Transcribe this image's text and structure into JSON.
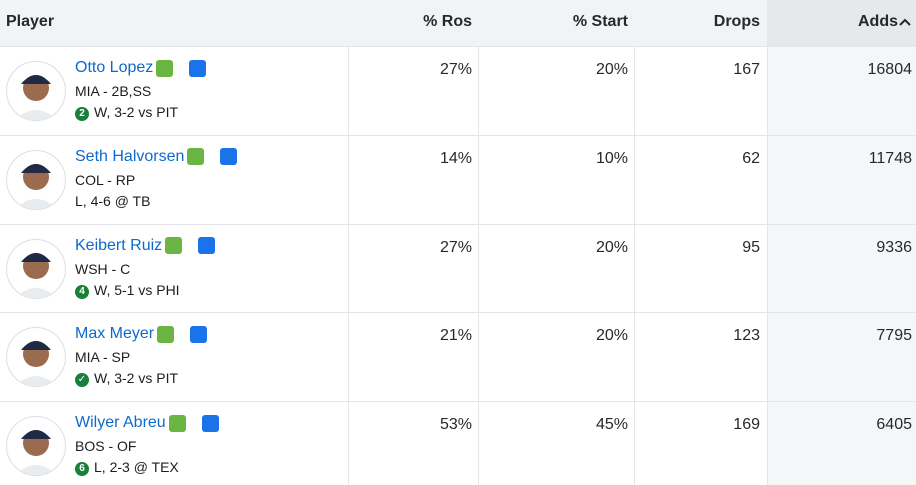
{
  "header": {
    "columns": [
      "Player",
      "% Ros",
      "% Start",
      "Drops",
      "Adds"
    ]
  },
  "table": {
    "rows": [
      {
        "name": "Otto Lopez",
        "position": "MIA - 2B,SS",
        "badge": "2",
        "game": "W, 3-2 vs PIT",
        "ros": "27%",
        "start": "20%",
        "drops": "167",
        "adds": "16804"
      },
      {
        "name": "Seth Halvorsen",
        "position": "COL - RP",
        "game": "L, 4-6 @ TB",
        "ros": "14%",
        "start": "10%",
        "drops": "62",
        "adds": "11748"
      },
      {
        "name": "Keibert Ruiz",
        "position": "WSH - C",
        "badge": "4",
        "game": "W, 5-1 vs PHI",
        "ros": "27%",
        "start": "20%",
        "drops": "95",
        "adds": "9336"
      },
      {
        "name": "Max Meyer",
        "position": "MIA - SP",
        "badge": "✓",
        "game": "W, 3-2 vs PIT",
        "ros": "21%",
        "start": "20%",
        "drops": "123",
        "adds": "7795"
      },
      {
        "name": "Wilyer Abreu",
        "position": "BOS - OF",
        "badge": "6",
        "game": "L, 2-3 @ TEX",
        "ros": "53%",
        "start": "45%",
        "drops": "169",
        "adds": "6405"
      }
    ]
  }
}
